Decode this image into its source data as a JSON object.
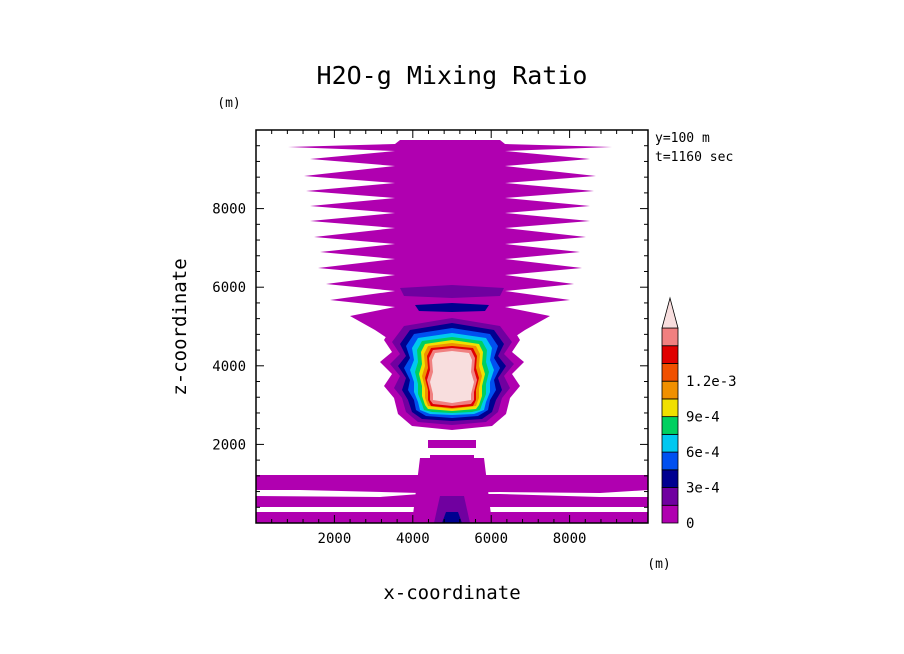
{
  "chart_data": {
    "type": "heatmap",
    "title": "H2O-g Mixing Ratio",
    "xlabel": "x-coordinate",
    "ylabel": "z-coordinate",
    "x_unit": "(m)",
    "y_unit": "(m)",
    "annotations": [
      "y=100 m",
      "t=1160 sec"
    ],
    "xlim": [
      0,
      10000
    ],
    "ylim": [
      0,
      10000
    ],
    "x_ticks": [
      2000,
      4000,
      6000,
      8000
    ],
    "y_ticks": [
      2000,
      4000,
      6000,
      8000
    ],
    "x_tick_labels": [
      "2000",
      "4000",
      "6000",
      "8000"
    ],
    "y_tick_labels": [
      "2000",
      "4000",
      "6000",
      "8000"
    ],
    "colorbar": {
      "levels": [
        0,
        0.00015,
        0.0003,
        0.00045,
        0.0006,
        0.00075,
        0.0009,
        0.00105,
        0.0012,
        0.00135
      ],
      "colors": [
        "#b000b0",
        "#7000a0",
        "#000090",
        "#0050f0",
        "#00c8f0",
        "#00d060",
        "#f0e000",
        "#f09000",
        "#f05000",
        "#e00000",
        "#f08080",
        "#f8dede"
      ],
      "tick_values": [
        0,
        0.0003,
        0.0006,
        0.0009,
        0.0012
      ],
      "tick_labels": [
        "0",
        "3e-4",
        "6e-4",
        "9e-4",
        "1.2e-3"
      ],
      "extend": "max"
    },
    "features": [
      {
        "name": "upper-plume",
        "value": 5e-05,
        "x_range": [
          1000,
          9000
        ],
        "z_range": [
          5500,
          9500
        ]
      },
      {
        "name": "cloud-core",
        "value": 0.0013,
        "x_center": 5000,
        "z_range": [
          2600,
          4500
        ]
      },
      {
        "name": "boundary-layer",
        "value": 5e-05,
        "x_range": [
          0,
          10000
        ],
        "z_range": [
          0,
          1300
        ]
      }
    ]
  }
}
